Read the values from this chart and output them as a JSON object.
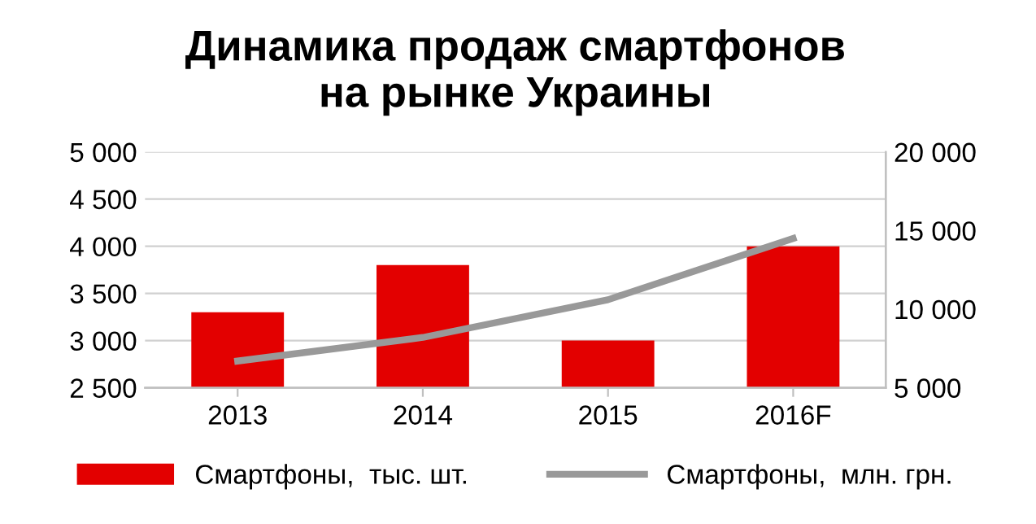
{
  "chart_data": {
    "type": "bar",
    "title": "Динамика продаж смартфонов\nна рынке Украины",
    "categories": [
      "2013",
      "2014",
      "2015",
      "2016F"
    ],
    "series": [
      {
        "name": "Смартфоны,  тыс. шт.",
        "color": "#e30000",
        "values": [
          3300,
          3800,
          3000,
          4000
        ]
      },
      {
        "name": "Смартфоны,  млн. грн.",
        "color": "#999999",
        "type": "line",
        "axis": "y2",
        "values": [
          6700,
          8200,
          10600,
          14500
        ]
      }
    ],
    "ylim": [
      2500,
      5000
    ],
    "yticks": [
      {
        "value": 2500,
        "label": "2 500"
      },
      {
        "value": 3000,
        "label": "3 000"
      },
      {
        "value": 3500,
        "label": "3 500"
      },
      {
        "value": 4000,
        "label": "4 000"
      },
      {
        "value": 4500,
        "label": "4 500"
      },
      {
        "value": 5000,
        "label": "5 000"
      }
    ],
    "y2lim": [
      5000,
      20000
    ],
    "y2ticks": [
      {
        "value": 5000,
        "label": "5 000"
      },
      {
        "value": 10000,
        "label": "10 000"
      },
      {
        "value": 15000,
        "label": "15 000"
      },
      {
        "value": 20000,
        "label": "20 000"
      }
    ],
    "grid": "y",
    "legend": "bottom",
    "marker": "none",
    "line_style": "solid"
  }
}
